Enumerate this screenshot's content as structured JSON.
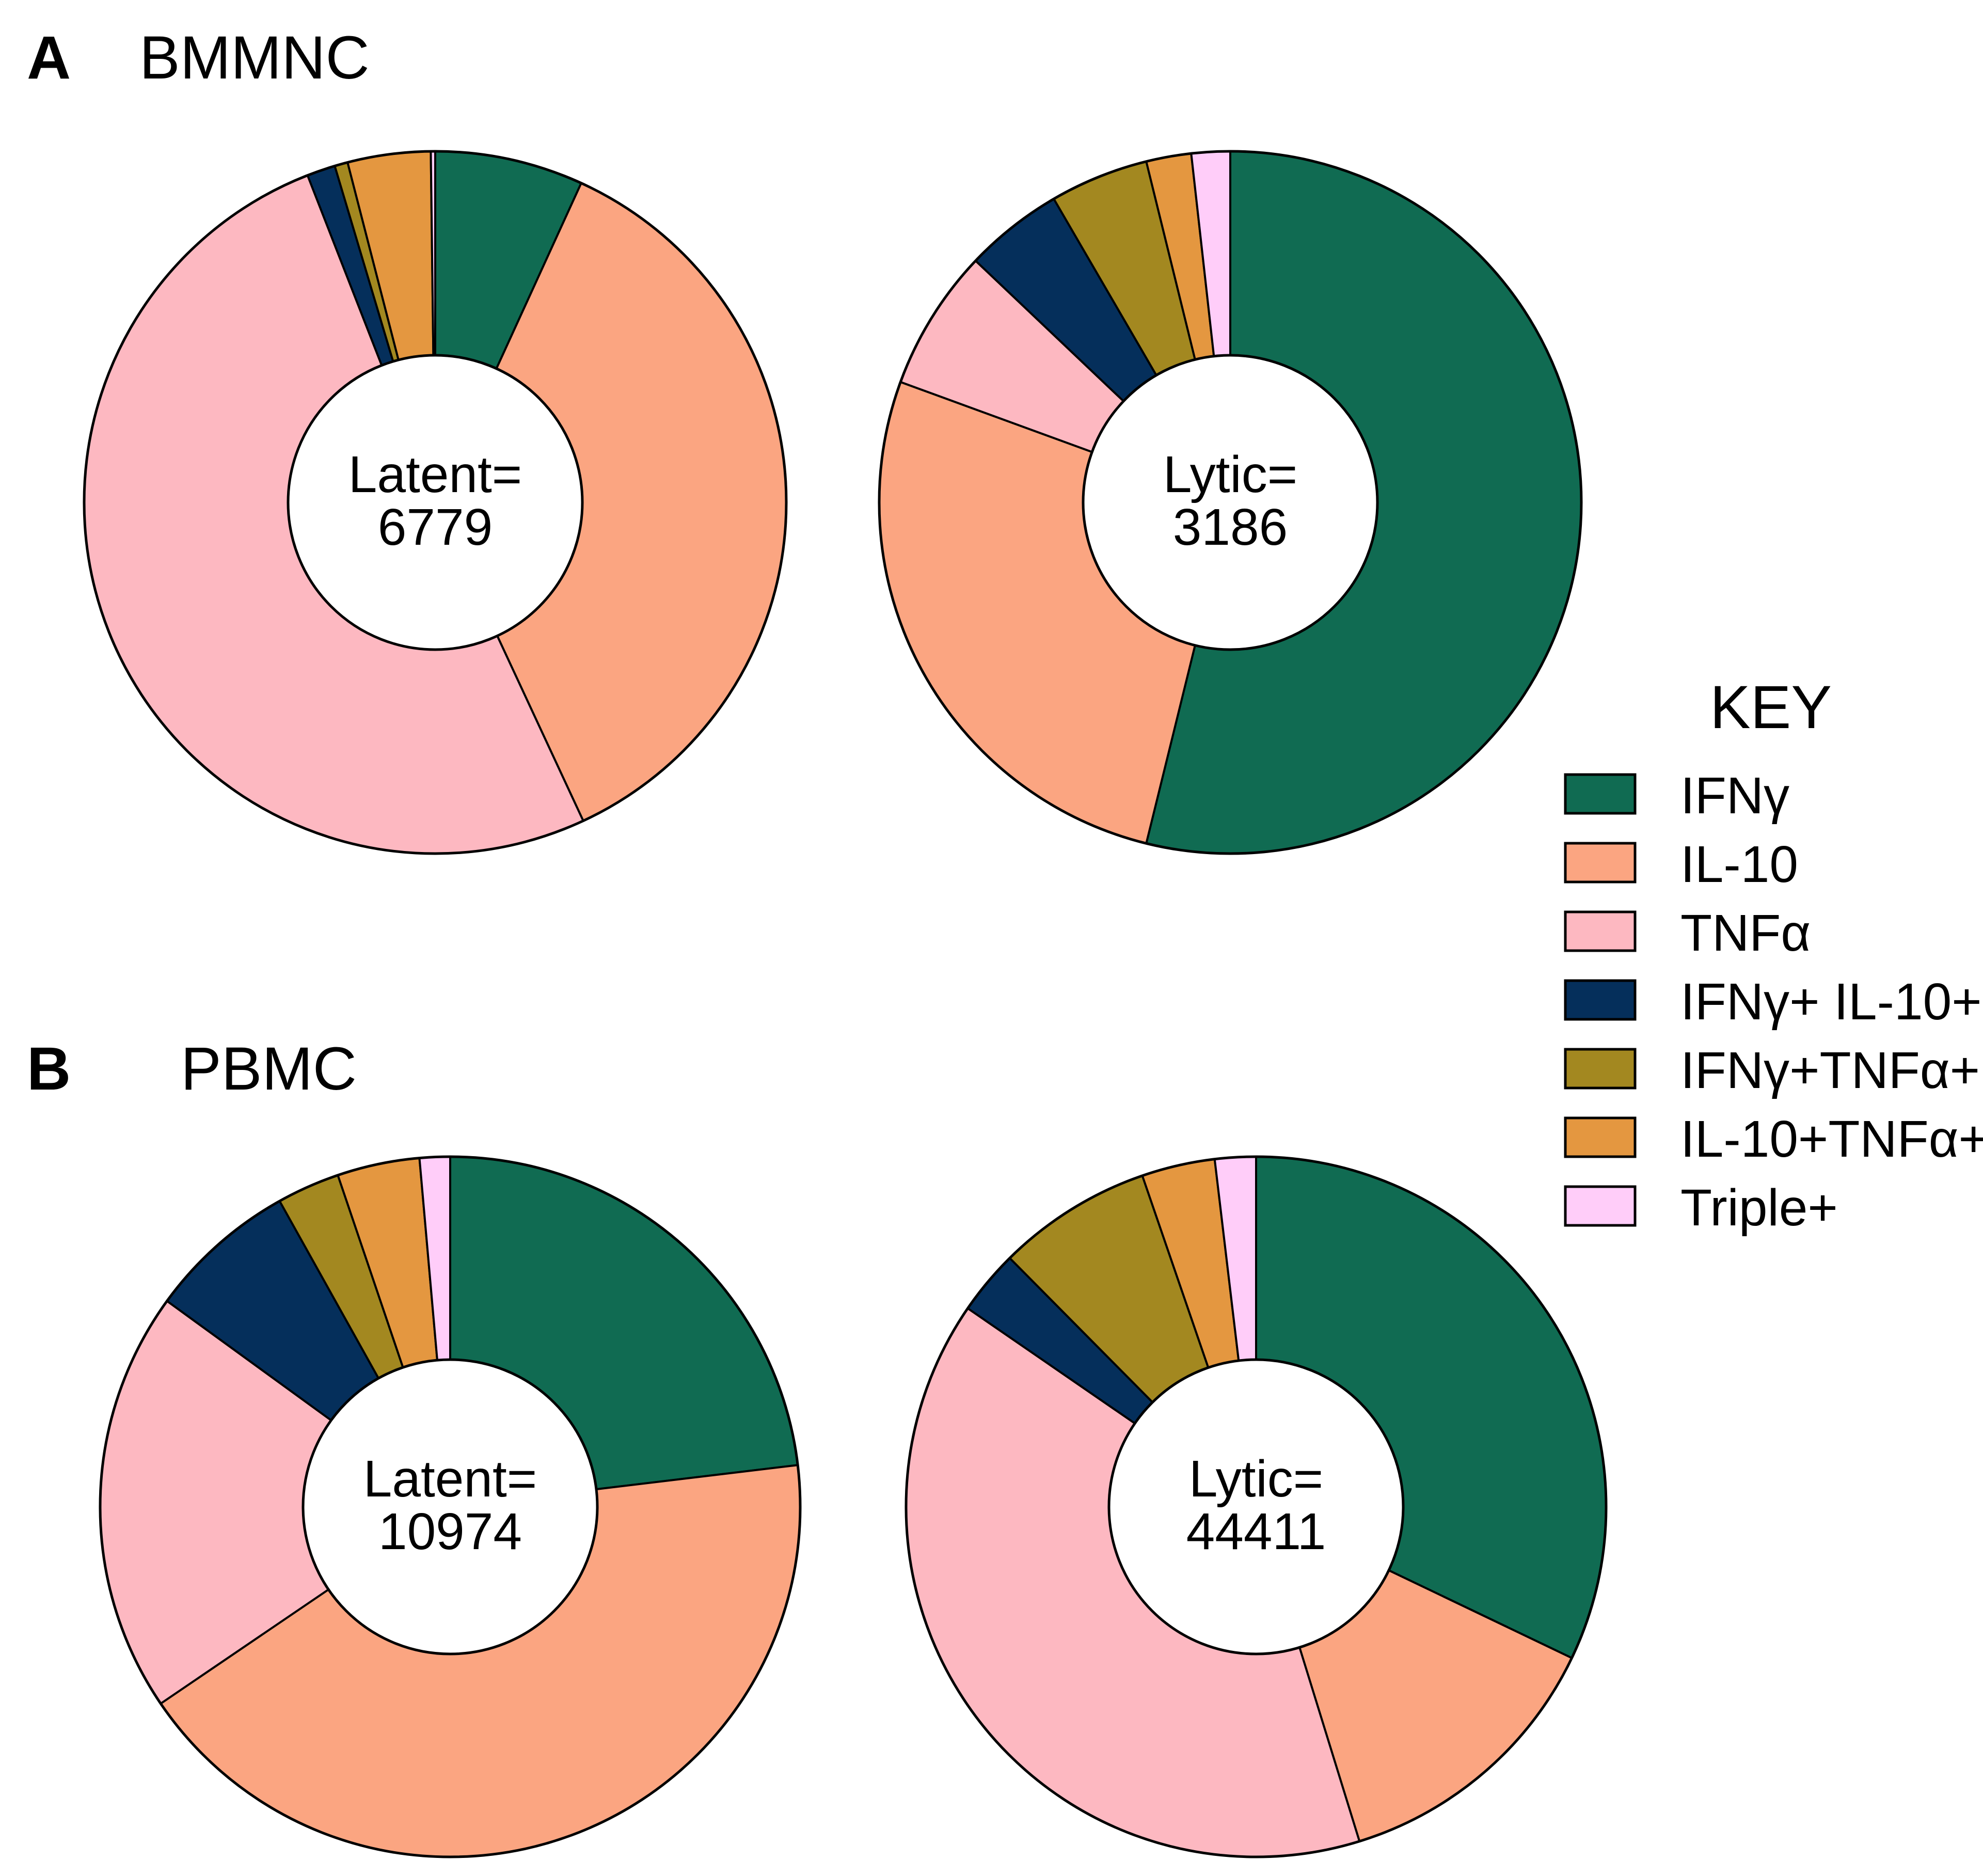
{
  "legend": {
    "title": "KEY",
    "items": [
      {
        "label": "IFNγ",
        "color": "#106B52"
      },
      {
        "label": "IL-10",
        "color": "#FBA581"
      },
      {
        "label": "TNFα",
        "color": "#FDB8C1"
      },
      {
        "label": "IFNγ+ IL-10+",
        "color": "#052F5B"
      },
      {
        "label": "IFNγ+TNFα+",
        "color": "#A38820"
      },
      {
        "label": "IL-10+TNFα+",
        "color": "#E49740"
      },
      {
        "label": "Triple+",
        "color": "#FFCDF9"
      }
    ]
  },
  "panels": [
    {
      "letter": "A",
      "title": "BMMNC"
    },
    {
      "letter": "B",
      "title": "PBMC"
    }
  ],
  "chart_data": [
    {
      "type": "pie",
      "panel": "A",
      "title": "BMMNC",
      "center_label": "Latent=",
      "center_value": "6779",
      "categories": [
        "IFNγ",
        "IL-10",
        "TNFα",
        "IFNγ+ IL-10+",
        "IFNγ+TNFα+",
        "IL-10+TNFα+",
        "Triple+"
      ],
      "values": [
        6.8,
        36.1,
        50.8,
        1.3,
        0.6,
        3.8,
        0.2
      ]
    },
    {
      "type": "pie",
      "panel": "A",
      "title": "BMMNC",
      "center_label": "Lytic=",
      "center_value": "3186",
      "categories": [
        "IFNγ",
        "IL-10",
        "TNFα",
        "IFNγ+ IL-10+",
        "IFNγ+TNFα+",
        "IL-10+TNFα+",
        "Triple+"
      ],
      "values": [
        54.6,
        27.1,
        6.6,
        4.6,
        4.6,
        2.1,
        1.8
      ]
    },
    {
      "type": "pie",
      "panel": "B",
      "title": "PBMC",
      "center_label": "Latent=",
      "center_value": "10974",
      "categories": [
        "IFNγ",
        "IL-10",
        "TNFα",
        "IFNγ+ IL-10+",
        "IFNγ+TNFα+",
        "IL-10+TNFα+",
        "Triple+"
      ],
      "values": [
        23.1,
        42.4,
        19.5,
        6.9,
        2.9,
        3.8,
        1.4
      ]
    },
    {
      "type": "pie",
      "panel": "B",
      "title": "PBMC",
      "center_label": "Lytic=",
      "center_value": "44411",
      "categories": [
        "IFNγ",
        "IL-10",
        "TNFα",
        "IFNγ+ IL-10+",
        "IFNγ+TNFα+",
        "IL-10+TNFα+",
        "Triple+"
      ],
      "values": [
        32.3,
        13.2,
        39.6,
        3.0,
        7.2,
        3.4,
        1.9
      ]
    }
  ]
}
